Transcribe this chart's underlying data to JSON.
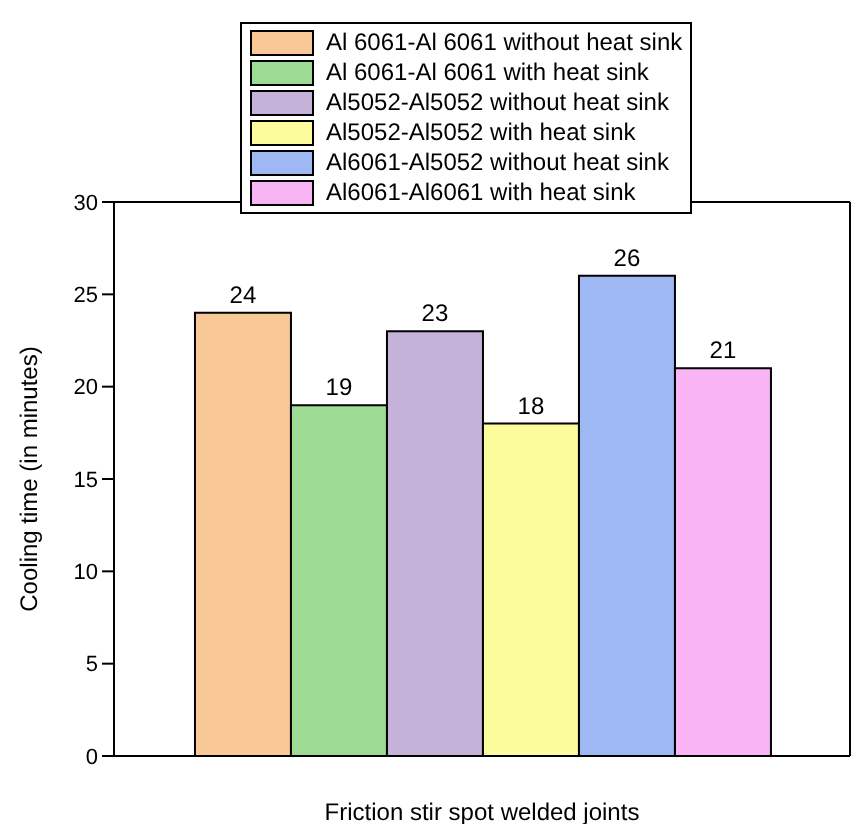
{
  "chart_data": {
    "type": "bar",
    "xlabel": "Friction stir spot welded joints",
    "ylabel": "Cooling time (in minutes)",
    "categories": [
      null
    ],
    "series": [
      {
        "name": "Al 6061-Al 6061 without heat sink",
        "color": "#f8c896",
        "values": [
          24
        ]
      },
      {
        "name": "Al 6061-Al 6061 with heat sink",
        "color": "#9ddb95",
        "values": [
          19
        ]
      },
      {
        "name": "Al5052-Al5052 without heat sink",
        "color": "#c4b2d8",
        "values": [
          23
        ]
      },
      {
        "name": "Al5052-Al5052 with heat sink",
        "color": "#fcfc9c",
        "values": [
          18
        ]
      },
      {
        "name": "Al6061-Al5052 without heat sink",
        "color": "#9db8f2",
        "values": [
          26
        ]
      },
      {
        "name": "Al6061-Al6061 with heat sink",
        "color": "#f8b4f4",
        "values": [
          21
        ]
      }
    ],
    "ylim": [
      0,
      30
    ],
    "yticks": [
      0,
      5,
      10,
      15,
      20,
      25,
      30
    ],
    "grid": false,
    "legend": "top",
    "data_labels": true
  }
}
